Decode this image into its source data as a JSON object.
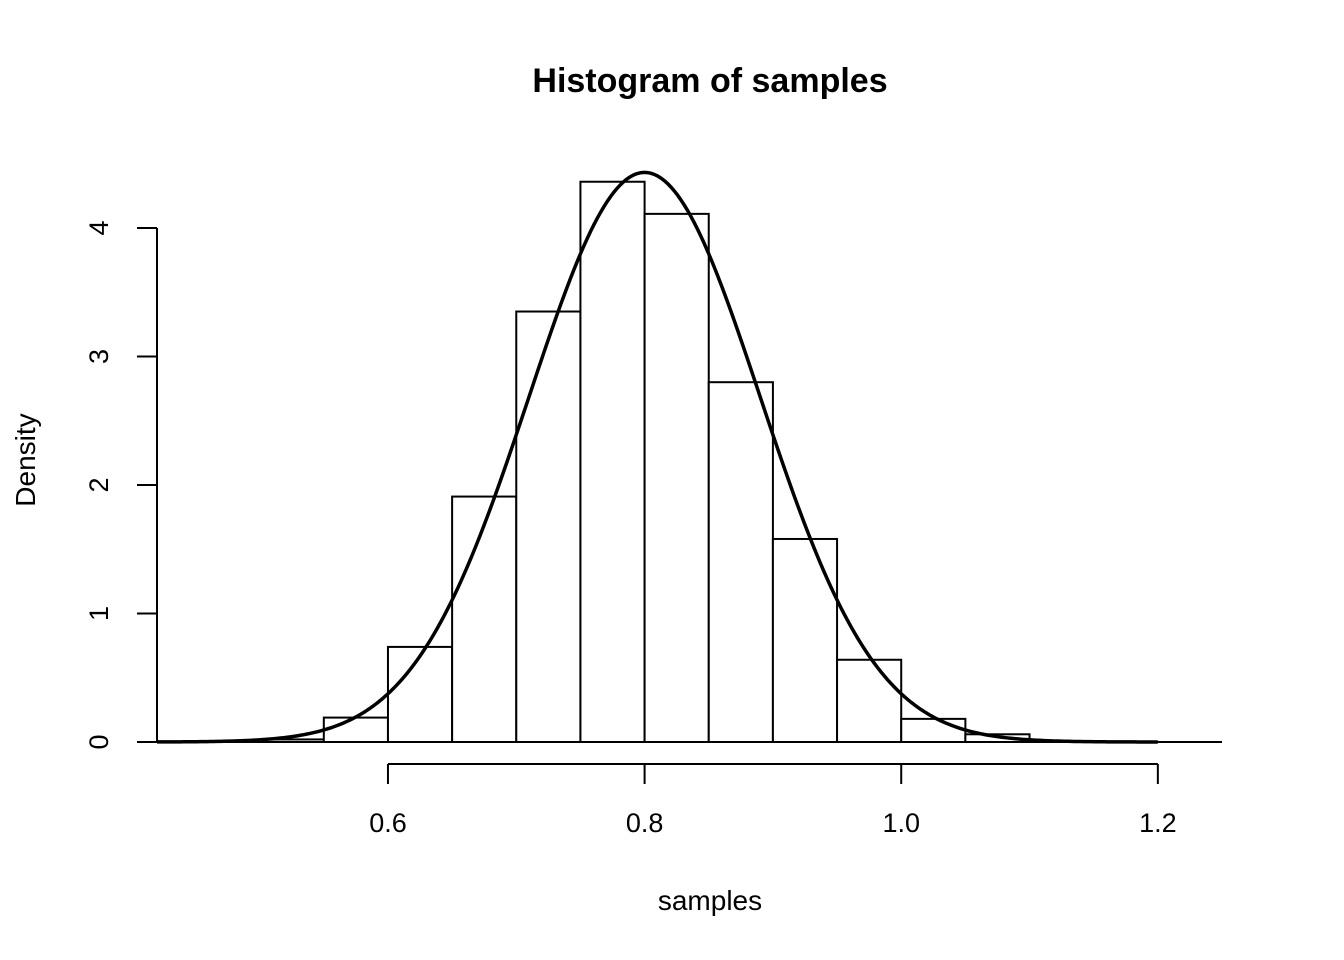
{
  "chart_data": {
    "type": "bar",
    "title": "Histogram of samples",
    "xlabel": "samples",
    "ylabel": "Density",
    "xlim": [
      0.42,
      1.25
    ],
    "ylim": [
      0,
      4.5
    ],
    "x_ticks": [
      0.6,
      0.8,
      1.0,
      1.2
    ],
    "x_tick_labels": [
      "0.6",
      "0.8",
      "1.0",
      "1.2"
    ],
    "y_ticks": [
      0,
      1,
      2,
      3,
      4
    ],
    "y_tick_labels": [
      "0",
      "1",
      "2",
      "3",
      "4"
    ],
    "bins": [
      {
        "start": 0.5,
        "end": 0.55,
        "density": 0.02
      },
      {
        "start": 0.55,
        "end": 0.6,
        "density": 0.19
      },
      {
        "start": 0.6,
        "end": 0.65,
        "density": 0.74
      },
      {
        "start": 0.65,
        "end": 0.7,
        "density": 1.91
      },
      {
        "start": 0.7,
        "end": 0.75,
        "density": 3.35
      },
      {
        "start": 0.75,
        "end": 0.8,
        "density": 4.36
      },
      {
        "start": 0.8,
        "end": 0.85,
        "density": 4.11
      },
      {
        "start": 0.85,
        "end": 0.9,
        "density": 2.8
      },
      {
        "start": 0.9,
        "end": 0.95,
        "density": 1.58
      },
      {
        "start": 0.95,
        "end": 1.0,
        "density": 0.64
      },
      {
        "start": 1.0,
        "end": 1.05,
        "density": 0.18
      },
      {
        "start": 1.05,
        "end": 1.1,
        "density": 0.06
      }
    ],
    "density_curve": {
      "distribution": "normal",
      "mean": 0.8,
      "sd": 0.09,
      "x_range": [
        0.42,
        1.2
      ]
    },
    "grid": false,
    "legend": "none"
  }
}
